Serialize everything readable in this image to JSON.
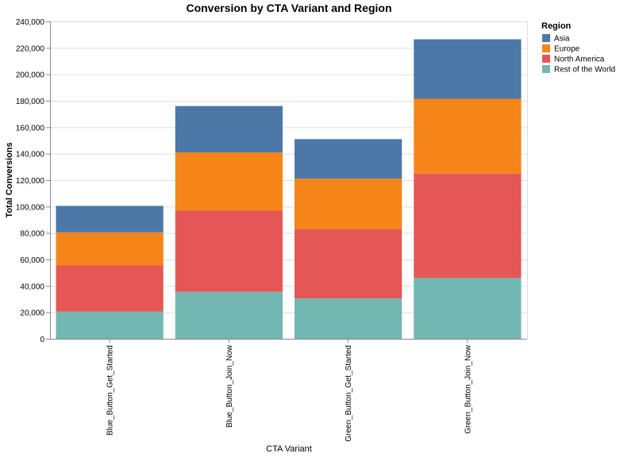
{
  "chart_data": {
    "type": "bar",
    "stacked": true,
    "title": "Conversion by CTA Variant and Region",
    "xlabel": "CTA Variant",
    "ylabel": "Total Conversions",
    "ylim": [
      0,
      240000
    ],
    "yticks": [
      0,
      20000,
      40000,
      60000,
      80000,
      100000,
      120000,
      140000,
      160000,
      180000,
      200000,
      220000,
      240000
    ],
    "ytick_labels": [
      "0",
      "20,000",
      "40,000",
      "60,000",
      "80,000",
      "100,000",
      "120,000",
      "140,000",
      "160,000",
      "180,000",
      "200,000",
      "220,000",
      "240,000"
    ],
    "grid": true,
    "categories": [
      "Blue_Button_Get_Started",
      "Blue_Button_Join_Now",
      "Green_Button_Get_Started",
      "Green_Button_Join_Now"
    ],
    "series": [
      {
        "name": "Rest of the World",
        "color": "#72b7b2",
        "values": [
          20500,
          35500,
          30500,
          46000
        ]
      },
      {
        "name": "North America",
        "color": "#e45756",
        "values": [
          35000,
          61500,
          52500,
          79000
        ]
      },
      {
        "name": "Europe",
        "color": "#f58518",
        "values": [
          25000,
          44000,
          38000,
          56500
        ]
      },
      {
        "name": "Asia",
        "color": "#4c78a8",
        "values": [
          20000,
          35000,
          30000,
          45000
        ]
      }
    ],
    "legend": {
      "title": "Region",
      "placement": "right",
      "entries": [
        "Asia",
        "Europe",
        "North America",
        "Rest of the World"
      ],
      "colors": [
        "#4c78a8",
        "#f58518",
        "#e45756",
        "#72b7b2"
      ]
    }
  }
}
